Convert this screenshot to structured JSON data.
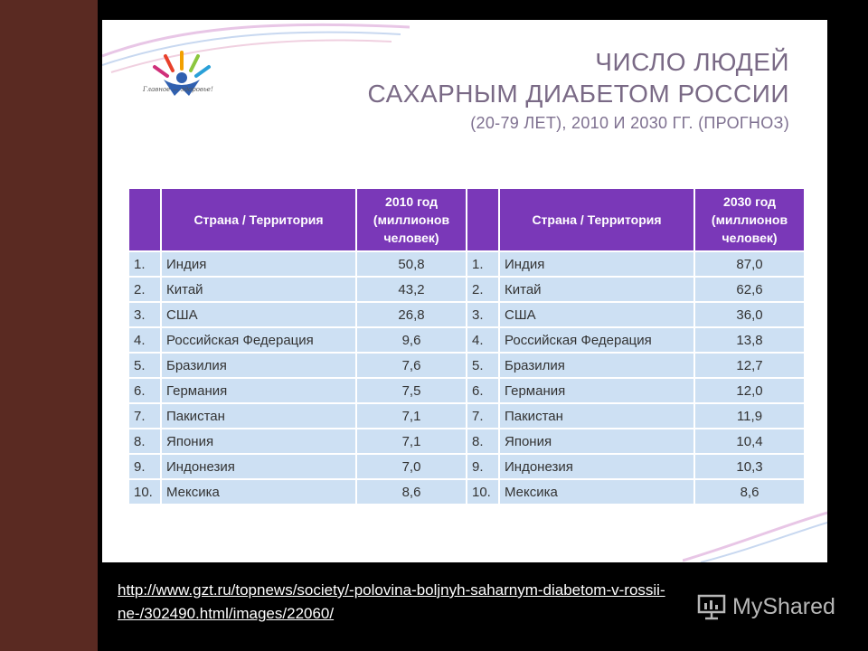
{
  "slide": {
    "title_line1": "ЧИСЛО ЛЮДЕЙ",
    "title_line2": "САХАРНЫМ ДИАБЕТОМ РОССИИ",
    "title_line3": "(20-79 ЛЕТ), 2010 И 2030 ГГ. (ПРОГНОЗ)",
    "logo_caption": "Главное — здоровье!"
  },
  "table": {
    "left_headers": {
      "country": "Страна / Территория",
      "value": "2010 год (миллионов человек)"
    },
    "right_headers": {
      "country": "Страна / Территория",
      "value": "2030 год (миллионов человек)"
    },
    "rows": [
      {
        "rank": "1.",
        "country_2010": "Индия",
        "value_2010": "50,8",
        "rank_r": "1.",
        "country_2030": "Индия",
        "value_2030": "87,0"
      },
      {
        "rank": "2.",
        "country_2010": "Китай",
        "value_2010": "43,2",
        "rank_r": "2.",
        "country_2030": "Китай",
        "value_2030": "62,6"
      },
      {
        "rank": "3.",
        "country_2010": "США",
        "value_2010": "26,8",
        "rank_r": "3.",
        "country_2030": "США",
        "value_2030": "36,0"
      },
      {
        "rank": "4.",
        "country_2010": "Российская Федерация",
        "value_2010": "9,6",
        "rank_r": "4.",
        "country_2030": "Российская Федерация",
        "value_2030": "13,8"
      },
      {
        "rank": "5.",
        "country_2010": "Бразилия",
        "value_2010": "7,6",
        "rank_r": "5.",
        "country_2030": "Бразилия",
        "value_2030": "12,7"
      },
      {
        "rank": "6.",
        "country_2010": "Германия",
        "value_2010": "7,5",
        "rank_r": "6.",
        "country_2030": "Германия",
        "value_2030": "12,0"
      },
      {
        "rank": "7.",
        "country_2010": "Пакистан",
        "value_2010": "7,1",
        "rank_r": "7.",
        "country_2030": "Пакистан",
        "value_2030": "11,9"
      },
      {
        "rank": "8.",
        "country_2010": "Япония",
        "value_2010": "7,1",
        "rank_r": "8.",
        "country_2030": "Япония",
        "value_2030": "10,4"
      },
      {
        "rank": "9.",
        "country_2010": "Индонезия",
        "value_2010": "7,0",
        "rank_r": "9.",
        "country_2030": "Индонезия",
        "value_2030": "10,3"
      },
      {
        "rank": "10.",
        "country_2010": "Мексика",
        "value_2010": "8,6",
        "rank_r": "10.",
        "country_2030": "Мексика",
        "value_2030": "8,6"
      }
    ]
  },
  "source_link": "http://www.gzt.ru/topnews/society/-polovina-boljnyh-saharnym-diabetom-v-rossii-ne-/302490.html/images/22060/",
  "watermark": {
    "text": "MyShared",
    "icon": "presentation-icon"
  },
  "colors": {
    "header": "#7a38b8",
    "cell": "#cde0f3",
    "title": "#7a6a86",
    "frame": "#5a2a22"
  }
}
